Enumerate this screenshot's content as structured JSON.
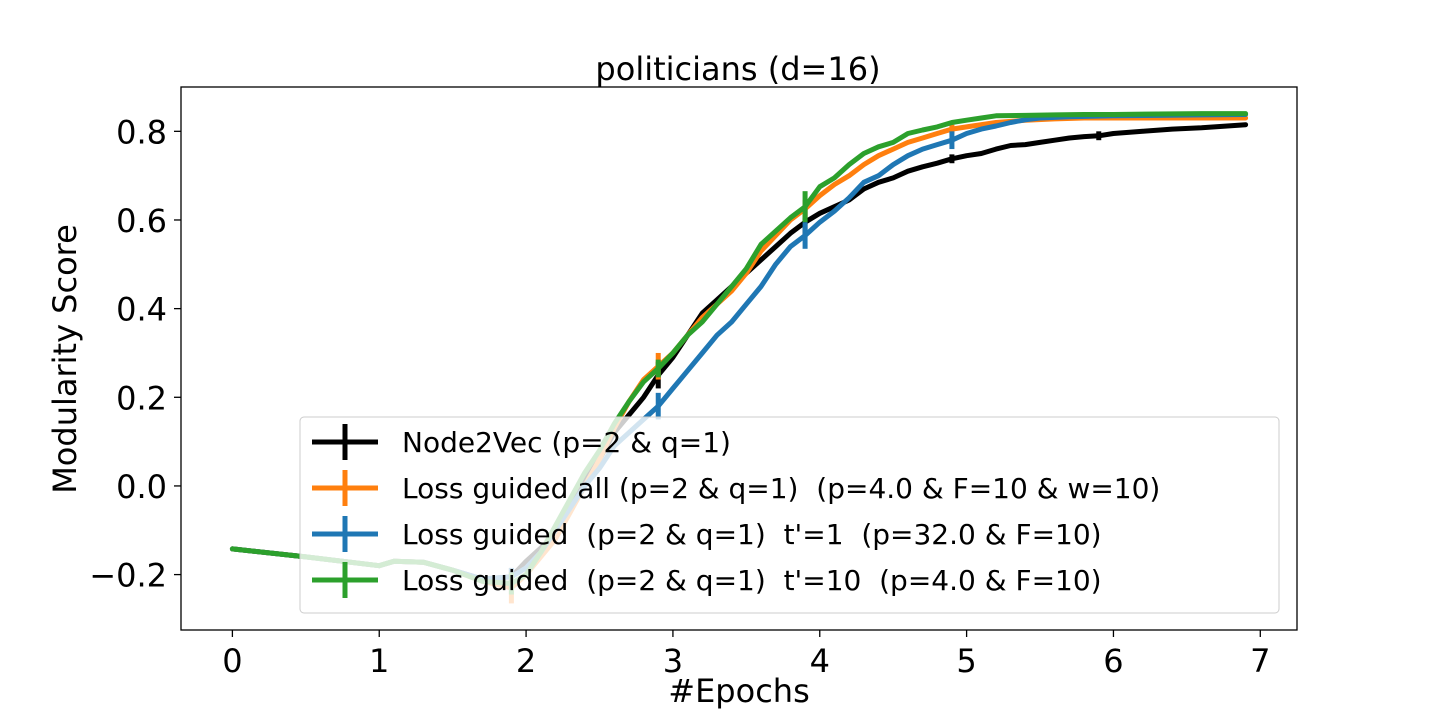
{
  "chart_data": {
    "type": "line",
    "title": "politicians (d=16)",
    "xlabel": "#Epochs",
    "ylabel": "Modularity Score",
    "xlim": [
      -0.35,
      7.25
    ],
    "ylim": [
      -0.325,
      0.9
    ],
    "xticks": [
      0,
      1,
      2,
      3,
      4,
      5,
      6,
      7
    ],
    "xtick_labels": [
      "0",
      "1",
      "2",
      "3",
      "4",
      "5",
      "6",
      "7"
    ],
    "yticks": [
      -0.2,
      0.0,
      0.2,
      0.4,
      0.6,
      0.8
    ],
    "ytick_labels": [
      "−0.2",
      "0.0",
      "0.2",
      "0.4",
      "0.6",
      "0.8"
    ],
    "grid": false,
    "legend_position": "lower-right",
    "series": [
      {
        "name": "Node2Vec (p=2 & q=1)",
        "color": "#000000",
        "points": [
          [
            0.0,
            -0.142
          ],
          [
            0.5,
            -0.16
          ],
          [
            1.0,
            -0.18
          ],
          [
            1.1,
            -0.17
          ],
          [
            1.3,
            -0.172
          ],
          [
            1.5,
            -0.19
          ],
          [
            1.7,
            -0.21
          ],
          [
            1.9,
            -0.205
          ],
          [
            2.0,
            -0.17
          ],
          [
            2.2,
            -0.11
          ],
          [
            2.3,
            -0.05
          ],
          [
            2.4,
            0.01
          ],
          [
            2.5,
            0.06
          ],
          [
            2.6,
            0.12
          ],
          [
            2.7,
            0.16
          ],
          [
            2.8,
            0.2
          ],
          [
            2.9,
            0.25
          ],
          [
            3.0,
            0.29
          ],
          [
            3.1,
            0.34
          ],
          [
            3.2,
            0.39
          ],
          [
            3.3,
            0.42
          ],
          [
            3.4,
            0.45
          ],
          [
            3.5,
            0.48
          ],
          [
            3.6,
            0.51
          ],
          [
            3.7,
            0.54
          ],
          [
            3.8,
            0.57
          ],
          [
            3.9,
            0.595
          ],
          [
            4.0,
            0.615
          ],
          [
            4.1,
            0.63
          ],
          [
            4.2,
            0.645
          ],
          [
            4.3,
            0.67
          ],
          [
            4.4,
            0.685
          ],
          [
            4.5,
            0.695
          ],
          [
            4.6,
            0.71
          ],
          [
            4.7,
            0.72
          ],
          [
            4.8,
            0.728
          ],
          [
            4.9,
            0.738
          ],
          [
            5.0,
            0.745
          ],
          [
            5.1,
            0.75
          ],
          [
            5.2,
            0.76
          ],
          [
            5.3,
            0.768
          ],
          [
            5.4,
            0.77
          ],
          [
            5.5,
            0.775
          ],
          [
            5.6,
            0.78
          ],
          [
            5.7,
            0.785
          ],
          [
            5.8,
            0.788
          ],
          [
            5.9,
            0.79
          ],
          [
            6.0,
            0.795
          ],
          [
            6.2,
            0.8
          ],
          [
            6.4,
            0.805
          ],
          [
            6.6,
            0.808
          ],
          [
            6.9,
            0.815
          ]
        ],
        "error_bars": [
          [
            1.9,
            -0.205,
            0.02
          ],
          [
            2.9,
            0.25,
            0.03
          ],
          [
            3.9,
            0.595,
            0.03
          ],
          [
            4.9,
            0.738,
            0.01
          ],
          [
            5.9,
            0.79,
            0.01
          ]
        ]
      },
      {
        "name": "Loss guided all (p=2 & q=1)  (p=4.0 & F=10 & w=10)",
        "color": "#ff7f0e",
        "points": [
          [
            0.0,
            -0.142
          ],
          [
            0.5,
            -0.16
          ],
          [
            1.0,
            -0.18
          ],
          [
            1.1,
            -0.17
          ],
          [
            1.3,
            -0.172
          ],
          [
            1.5,
            -0.19
          ],
          [
            1.7,
            -0.215
          ],
          [
            1.9,
            -0.23
          ],
          [
            2.0,
            -0.2
          ],
          [
            2.2,
            -0.12
          ],
          [
            2.3,
            -0.06
          ],
          [
            2.4,
            0.0
          ],
          [
            2.5,
            0.06
          ],
          [
            2.6,
            0.13
          ],
          [
            2.7,
            0.19
          ],
          [
            2.8,
            0.24
          ],
          [
            2.9,
            0.27
          ],
          [
            3.0,
            0.3
          ],
          [
            3.1,
            0.34
          ],
          [
            3.2,
            0.38
          ],
          [
            3.3,
            0.41
          ],
          [
            3.4,
            0.44
          ],
          [
            3.5,
            0.48
          ],
          [
            3.6,
            0.53
          ],
          [
            3.7,
            0.565
          ],
          [
            3.8,
            0.6
          ],
          [
            3.9,
            0.625
          ],
          [
            4.0,
            0.655
          ],
          [
            4.1,
            0.68
          ],
          [
            4.2,
            0.7
          ],
          [
            4.3,
            0.725
          ],
          [
            4.4,
            0.745
          ],
          [
            4.5,
            0.76
          ],
          [
            4.6,
            0.775
          ],
          [
            4.7,
            0.785
          ],
          [
            4.8,
            0.795
          ],
          [
            4.9,
            0.805
          ],
          [
            5.0,
            0.81
          ],
          [
            5.2,
            0.82
          ],
          [
            5.4,
            0.825
          ],
          [
            5.6,
            0.828
          ],
          [
            5.8,
            0.83
          ],
          [
            6.0,
            0.83
          ],
          [
            6.2,
            0.83
          ],
          [
            6.4,
            0.83
          ],
          [
            6.6,
            0.83
          ],
          [
            6.9,
            0.83
          ]
        ],
        "error_bars": [
          [
            1.9,
            -0.23,
            0.035
          ],
          [
            2.9,
            0.27,
            0.03
          ],
          [
            3.9,
            0.625,
            0.02
          ],
          [
            4.9,
            0.805,
            0.01
          ]
        ]
      },
      {
        "name": "Loss guided  (p=2 & q=1)  t'=1  (p=32.0 & F=10)",
        "color": "#1f77b4",
        "points": [
          [
            0.0,
            -0.142
          ],
          [
            0.5,
            -0.16
          ],
          [
            1.0,
            -0.18
          ],
          [
            1.1,
            -0.17
          ],
          [
            1.3,
            -0.172
          ],
          [
            1.5,
            -0.19
          ],
          [
            1.7,
            -0.21
          ],
          [
            1.9,
            -0.205
          ],
          [
            2.0,
            -0.185
          ],
          [
            2.1,
            -0.15
          ],
          [
            2.2,
            -0.1
          ],
          [
            2.3,
            -0.05
          ],
          [
            2.4,
            0.0
          ],
          [
            2.5,
            0.04
          ],
          [
            2.6,
            0.09
          ],
          [
            2.7,
            0.12
          ],
          [
            2.8,
            0.15
          ],
          [
            2.9,
            0.18
          ],
          [
            3.0,
            0.22
          ],
          [
            3.1,
            0.26
          ],
          [
            3.2,
            0.3
          ],
          [
            3.3,
            0.34
          ],
          [
            3.4,
            0.37
          ],
          [
            3.5,
            0.41
          ],
          [
            3.6,
            0.45
          ],
          [
            3.7,
            0.5
          ],
          [
            3.8,
            0.54
          ],
          [
            3.9,
            0.565
          ],
          [
            4.0,
            0.595
          ],
          [
            4.1,
            0.62
          ],
          [
            4.2,
            0.65
          ],
          [
            4.3,
            0.685
          ],
          [
            4.4,
            0.7
          ],
          [
            4.5,
            0.725
          ],
          [
            4.6,
            0.745
          ],
          [
            4.7,
            0.76
          ],
          [
            4.8,
            0.77
          ],
          [
            4.9,
            0.78
          ],
          [
            5.0,
            0.795
          ],
          [
            5.1,
            0.805
          ],
          [
            5.2,
            0.812
          ],
          [
            5.3,
            0.82
          ],
          [
            5.4,
            0.826
          ],
          [
            5.5,
            0.83
          ],
          [
            5.7,
            0.833
          ],
          [
            6.0,
            0.835
          ],
          [
            6.3,
            0.836
          ],
          [
            6.6,
            0.837
          ],
          [
            6.9,
            0.838
          ]
        ],
        "error_bars": [
          [
            1.9,
            -0.205,
            0.02
          ],
          [
            2.9,
            0.18,
            0.03
          ],
          [
            3.9,
            0.565,
            0.03
          ],
          [
            4.9,
            0.78,
            0.02
          ]
        ]
      },
      {
        "name": "Loss guided  (p=2 & q=1)  t'=10  (p=4.0 & F=10)",
        "color": "#2ca02c",
        "points": [
          [
            0.0,
            -0.142
          ],
          [
            0.5,
            -0.16
          ],
          [
            1.0,
            -0.18
          ],
          [
            1.1,
            -0.17
          ],
          [
            1.3,
            -0.172
          ],
          [
            1.5,
            -0.19
          ],
          [
            1.7,
            -0.215
          ],
          [
            1.9,
            -0.22
          ],
          [
            2.0,
            -0.2
          ],
          [
            2.1,
            -0.15
          ],
          [
            2.2,
            -0.09
          ],
          [
            2.3,
            -0.03
          ],
          [
            2.4,
            0.03
          ],
          [
            2.5,
            0.08
          ],
          [
            2.6,
            0.14
          ],
          [
            2.7,
            0.19
          ],
          [
            2.8,
            0.235
          ],
          [
            2.9,
            0.265
          ],
          [
            3.0,
            0.3
          ],
          [
            3.1,
            0.34
          ],
          [
            3.2,
            0.37
          ],
          [
            3.3,
            0.41
          ],
          [
            3.4,
            0.45
          ],
          [
            3.5,
            0.49
          ],
          [
            3.6,
            0.545
          ],
          [
            3.7,
            0.575
          ],
          [
            3.8,
            0.605
          ],
          [
            3.9,
            0.63
          ],
          [
            4.0,
            0.675
          ],
          [
            4.1,
            0.695
          ],
          [
            4.2,
            0.725
          ],
          [
            4.3,
            0.75
          ],
          [
            4.4,
            0.765
          ],
          [
            4.5,
            0.775
          ],
          [
            4.6,
            0.795
          ],
          [
            4.7,
            0.803
          ],
          [
            4.8,
            0.81
          ],
          [
            4.9,
            0.82
          ],
          [
            5.0,
            0.825
          ],
          [
            5.1,
            0.83
          ],
          [
            5.2,
            0.835
          ],
          [
            5.4,
            0.836
          ],
          [
            5.6,
            0.837
          ],
          [
            5.8,
            0.838
          ],
          [
            6.0,
            0.838
          ],
          [
            6.3,
            0.839
          ],
          [
            6.6,
            0.84
          ],
          [
            6.9,
            0.84
          ]
        ],
        "error_bars": [
          [
            1.9,
            -0.22,
            0.025
          ],
          [
            2.9,
            0.265,
            0.02
          ],
          [
            3.9,
            0.63,
            0.035
          ]
        ]
      }
    ]
  }
}
